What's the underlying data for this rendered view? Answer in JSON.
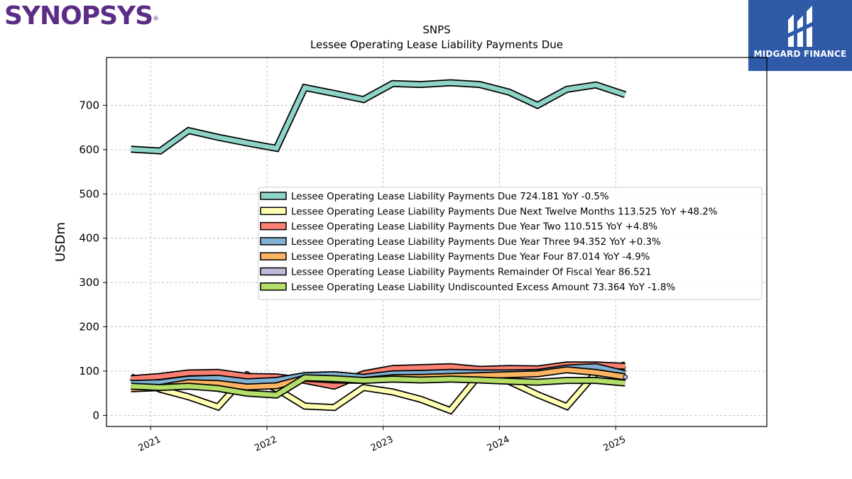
{
  "logos": {
    "left_text": "SYNOPSYS",
    "left_mark": "®",
    "right_text": "MIDGARD FINANCE"
  },
  "chart_data": {
    "type": "line",
    "title": "SNPS",
    "subtitle": "Lessee Operating Lease Liability Payments Due",
    "ylabel": "USDm",
    "xlabel": "",
    "ylim": [
      -25,
      808
    ],
    "xlim": [
      2020.62,
      2026.3
    ],
    "yticks": [
      0,
      100,
      200,
      300,
      400,
      500,
      600,
      700
    ],
    "xticks": [
      "2021",
      "2022",
      "2023",
      "2024",
      "2025"
    ],
    "grid": true,
    "legend_position": "center-right",
    "series": [
      {
        "name": "Lessee Operating Lease Liability Payments Due",
        "legend": "Lessee Operating Lease Liability Payments Due  724.181 YoY -0.5%",
        "color": "#8dd3c7",
        "x": [
          "2020-10-31",
          "2021-01-31",
          "2021-04-30",
          "2021-07-31",
          "2021-10-31",
          "2022-01-31",
          "2022-04-30",
          "2022-07-31",
          "2022-10-31",
          "2023-01-31",
          "2023-04-30",
          "2023-07-31",
          "2023-10-31",
          "2024-01-31",
          "2024-04-30",
          "2024-07-31",
          "2024-10-31",
          "2025-01-31"
        ],
        "values": [
          601,
          597,
          643,
          628,
          615,
          603,
          740,
          727,
          713,
          749,
          747,
          751,
          747,
          730,
          700,
          736,
          746,
          724
        ]
      },
      {
        "name": "Lessee Operating Lease Liability Payments Due Next Twelve Months",
        "legend": "Lessee Operating Lease Liability Payments Due Next Twelve Months  113.525 YoY +48.2%",
        "color": "#ffffb3",
        "x": [
          "2020-10-31",
          "2021-01-31",
          "2021-04-30",
          "2021-07-31",
          "2021-10-31",
          "2022-01-31",
          "2022-04-30",
          "2022-07-31",
          "2022-10-31",
          "2023-01-31",
          "2023-04-30",
          "2023-07-31",
          "2023-10-31",
          "2024-01-31",
          "2024-04-30",
          "2024-07-31",
          "2024-10-31",
          "2025-01-31"
        ],
        "values": [
          87,
          59,
          42,
          19,
          91,
          60,
          21,
          18,
          63,
          53,
          36,
          11,
          92,
          77,
          47,
          20,
          96,
          114
        ]
      },
      {
        "name": "Lessee Operating Lease Liability Payments Due Year Two",
        "legend": "Lessee Operating Lease Liability Payments Due Year Two  110.515 YoY +4.8%",
        "color": "#fb8072",
        "x": [
          "2020-10-31",
          "2021-01-31",
          "2021-04-30",
          "2021-07-31",
          "2021-10-31",
          "2022-01-31",
          "2022-04-30",
          "2022-07-31",
          "2022-10-31",
          "2023-01-31",
          "2023-04-30",
          "2023-07-31",
          "2023-10-31",
          "2024-01-31",
          "2024-04-30",
          "2024-07-31",
          "2024-10-31",
          "2025-01-31"
        ],
        "values": [
          83,
          88,
          96,
          97,
          88,
          87,
          79,
          66,
          94,
          106,
          108,
          110,
          104,
          106,
          105,
          114,
          114,
          111
        ]
      },
      {
        "name": "Lessee Operating Lease Liability Payments Due Year Three",
        "legend": "Lessee Operating Lease Liability Payments Due Year Three  94.352 YoY +0.3%",
        "color": "#80b1d3",
        "x": [
          "2020-10-31",
          "2021-01-31",
          "2021-04-30",
          "2021-07-31",
          "2021-10-31",
          "2022-01-31",
          "2022-04-30",
          "2022-07-31",
          "2022-10-31",
          "2023-01-31",
          "2023-04-30",
          "2023-07-31",
          "2023-10-31",
          "2024-01-31",
          "2024-04-30",
          "2024-07-31",
          "2024-10-31",
          "2025-01-31"
        ],
        "values": [
          72,
          74,
          82,
          84,
          76,
          79,
          90,
          92,
          86,
          94,
          95,
          97,
          96,
          96,
          97,
          107,
          110,
          94
        ]
      },
      {
        "name": "Lessee Operating Lease Liability Payments Due Year Four",
        "legend": "Lessee Operating Lease Liability Payments Due Year Four  87.014 YoY -4.9%",
        "color": "#fdb462",
        "x": [
          "2020-10-31",
          "2021-01-31",
          "2021-04-30",
          "2021-07-31",
          "2021-10-31",
          "2022-01-31",
          "2022-04-30",
          "2022-07-31",
          "2022-10-31",
          "2023-01-31",
          "2023-04-30",
          "2023-07-31",
          "2023-10-31",
          "2024-01-31",
          "2024-04-30",
          "2024-07-31",
          "2024-10-31",
          "2025-01-31"
        ],
        "values": [
          60,
          63,
          74,
          72,
          64,
          67,
          84,
          80,
          79,
          85,
          86,
          88,
          90,
          92,
          94,
          103,
          97,
          87
        ]
      },
      {
        "name": "Lessee Operating Lease Liability Payments Remainder Of Fiscal Year",
        "legend": "Lessee Operating Lease Liability Payments Remainder Of Fiscal Year  86.521",
        "color": "#bebada",
        "x": [
          "2025-01-31"
        ],
        "values": [
          86.521
        ]
      },
      {
        "name": "Lessee Operating Lease Liability Undiscounted Excess Amount",
        "legend": "Lessee Operating Lease Liability Undiscounted Excess Amount  73.364 YoY -1.8%",
        "color": "#b3de69",
        "x": [
          "2020-10-31",
          "2021-01-31",
          "2021-04-30",
          "2021-07-31",
          "2021-10-31",
          "2022-01-31",
          "2022-04-30",
          "2022-07-31",
          "2022-10-31",
          "2023-01-31",
          "2023-04-30",
          "2023-07-31",
          "2023-10-31",
          "2024-01-31",
          "2024-04-30",
          "2024-07-31",
          "2024-10-31",
          "2025-01-31"
        ],
        "values": [
          66,
          63,
          66,
          61,
          50,
          46,
          85,
          83,
          79,
          82,
          80,
          82,
          80,
          77,
          75,
          79,
          79,
          73
        ]
      }
    ]
  }
}
